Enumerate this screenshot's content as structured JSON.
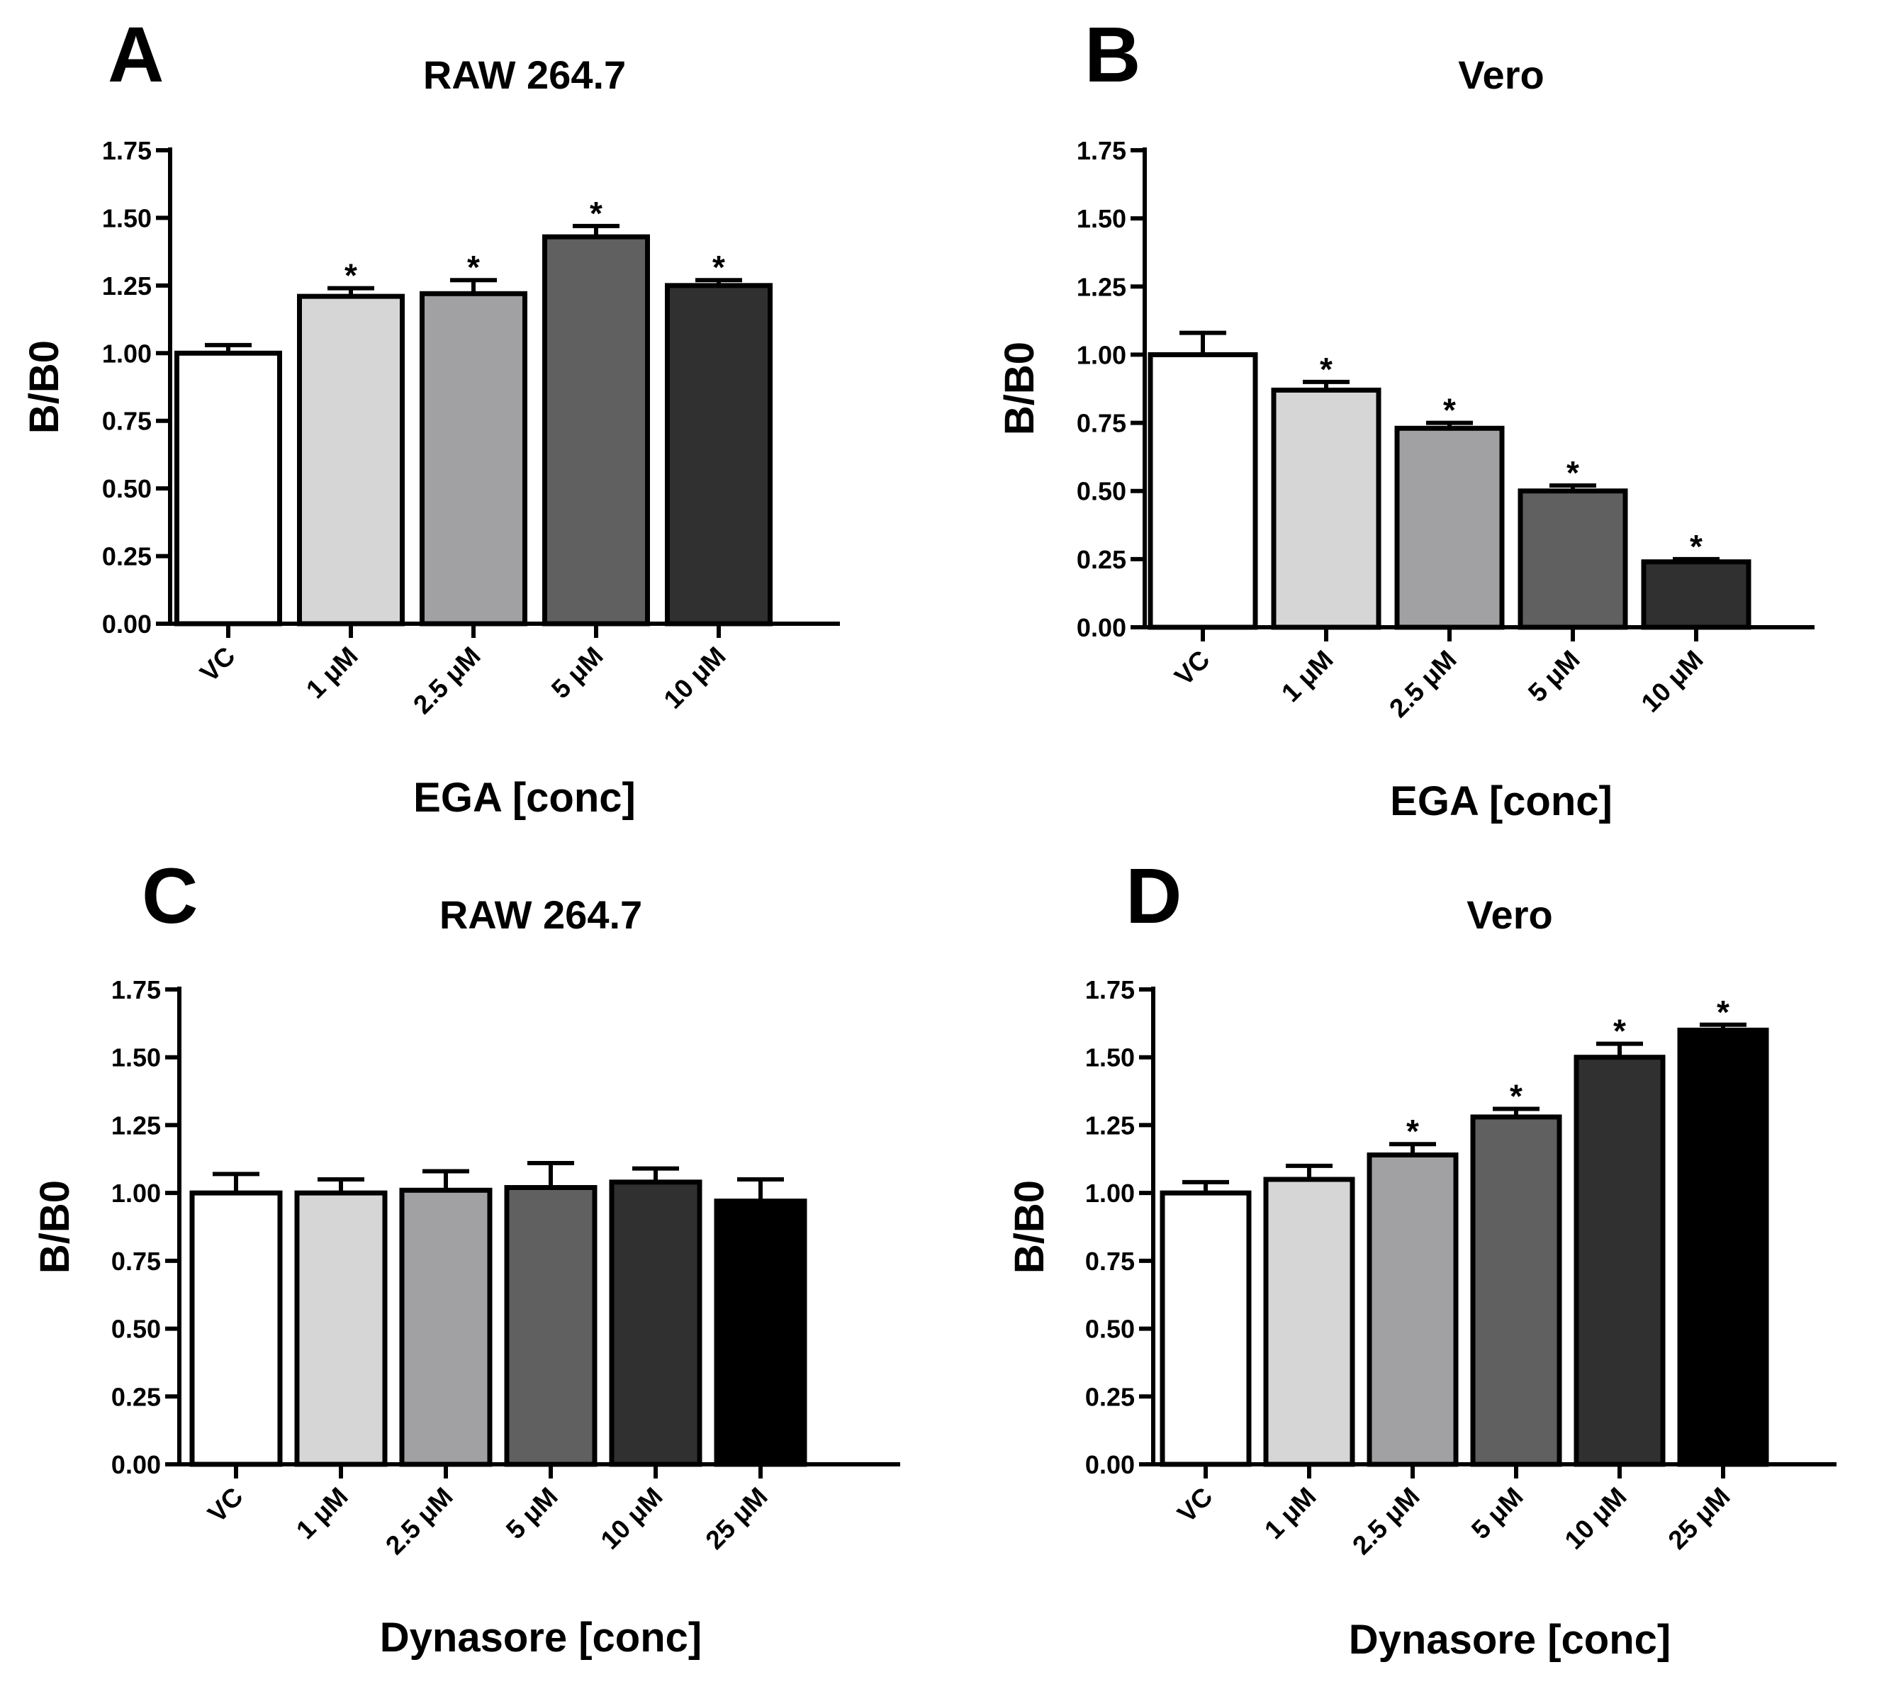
{
  "chart_data": [
    {
      "type": "bar",
      "panel_label": "A",
      "title": "RAW 264.7",
      "xlabel": "EGA [conc]",
      "ylabel": "B/B0",
      "ylim": [
        0,
        1.75
      ],
      "yticks": [
        "0.00",
        "0.25",
        "0.50",
        "0.75",
        "1.00",
        "1.25",
        "1.50",
        "1.75"
      ],
      "categories": [
        "VC",
        "1 μM",
        "2.5 μM",
        "5 μM",
        "10 μM"
      ],
      "values": [
        1.0,
        1.21,
        1.22,
        1.43,
        1.25
      ],
      "errors": [
        0.03,
        0.03,
        0.05,
        0.04,
        0.02
      ],
      "significance": [
        "",
        "*",
        "*",
        "*",
        "*"
      ],
      "fills": [
        "#ffffff",
        "#d6d6d6",
        "#a1a1a4",
        "#606060",
        "#303030"
      ]
    },
    {
      "type": "bar",
      "panel_label": "B",
      "title": "Vero",
      "xlabel": "EGA [conc]",
      "ylabel": "B/B0",
      "ylim": [
        0,
        1.75
      ],
      "yticks": [
        "0.00",
        "0.25",
        "0.50",
        "0.75",
        "1.00",
        "1.25",
        "1.50",
        "1.75"
      ],
      "categories": [
        "VC",
        "1 μM",
        "2.5 μM",
        "5 μM",
        "10 μM"
      ],
      "values": [
        1.0,
        0.87,
        0.73,
        0.5,
        0.24
      ],
      "errors": [
        0.08,
        0.03,
        0.02,
        0.02,
        0.01
      ],
      "significance": [
        "",
        "*",
        "*",
        "*",
        "*"
      ],
      "fills": [
        "#ffffff",
        "#d6d6d6",
        "#a1a1a4",
        "#606060",
        "#303030"
      ]
    },
    {
      "type": "bar",
      "panel_label": "C",
      "title": "RAW 264.7",
      "xlabel": "Dynasore [conc]",
      "ylabel": "B/B0",
      "ylim": [
        0,
        1.75
      ],
      "yticks": [
        "0.00",
        "0.25",
        "0.50",
        "0.75",
        "1.00",
        "1.25",
        "1.50",
        "1.75"
      ],
      "categories": [
        "VC",
        "1 μM",
        "2.5 μM",
        "5 μM",
        "10 μM",
        "25 μM"
      ],
      "values": [
        1.0,
        1.0,
        1.01,
        1.02,
        1.04,
        0.97
      ],
      "errors": [
        0.07,
        0.05,
        0.07,
        0.09,
        0.05,
        0.08
      ],
      "significance": [
        "",
        "",
        "",
        "",
        "",
        ""
      ],
      "fills": [
        "#ffffff",
        "#d6d6d6",
        "#a1a1a4",
        "#606060",
        "#303030",
        "#000000"
      ]
    },
    {
      "type": "bar",
      "panel_label": "D",
      "title": "Vero",
      "xlabel": "Dynasore [conc]",
      "ylabel": "B/B0",
      "ylim": [
        0,
        1.75
      ],
      "yticks": [
        "0.00",
        "0.25",
        "0.50",
        "0.75",
        "1.00",
        "1.25",
        "1.50",
        "1.75"
      ],
      "categories": [
        "VC",
        "1 μM",
        "2.5 μM",
        "5 μM",
        "10 μM",
        "25 μM"
      ],
      "values": [
        1.0,
        1.05,
        1.14,
        1.28,
        1.5,
        1.6
      ],
      "errors": [
        0.04,
        0.05,
        0.04,
        0.03,
        0.05,
        0.02
      ],
      "significance": [
        "",
        "",
        "*",
        "*",
        "*",
        "*"
      ],
      "fills": [
        "#ffffff",
        "#d6d6d6",
        "#a1a1a4",
        "#606060",
        "#303030",
        "#000000"
      ]
    }
  ]
}
